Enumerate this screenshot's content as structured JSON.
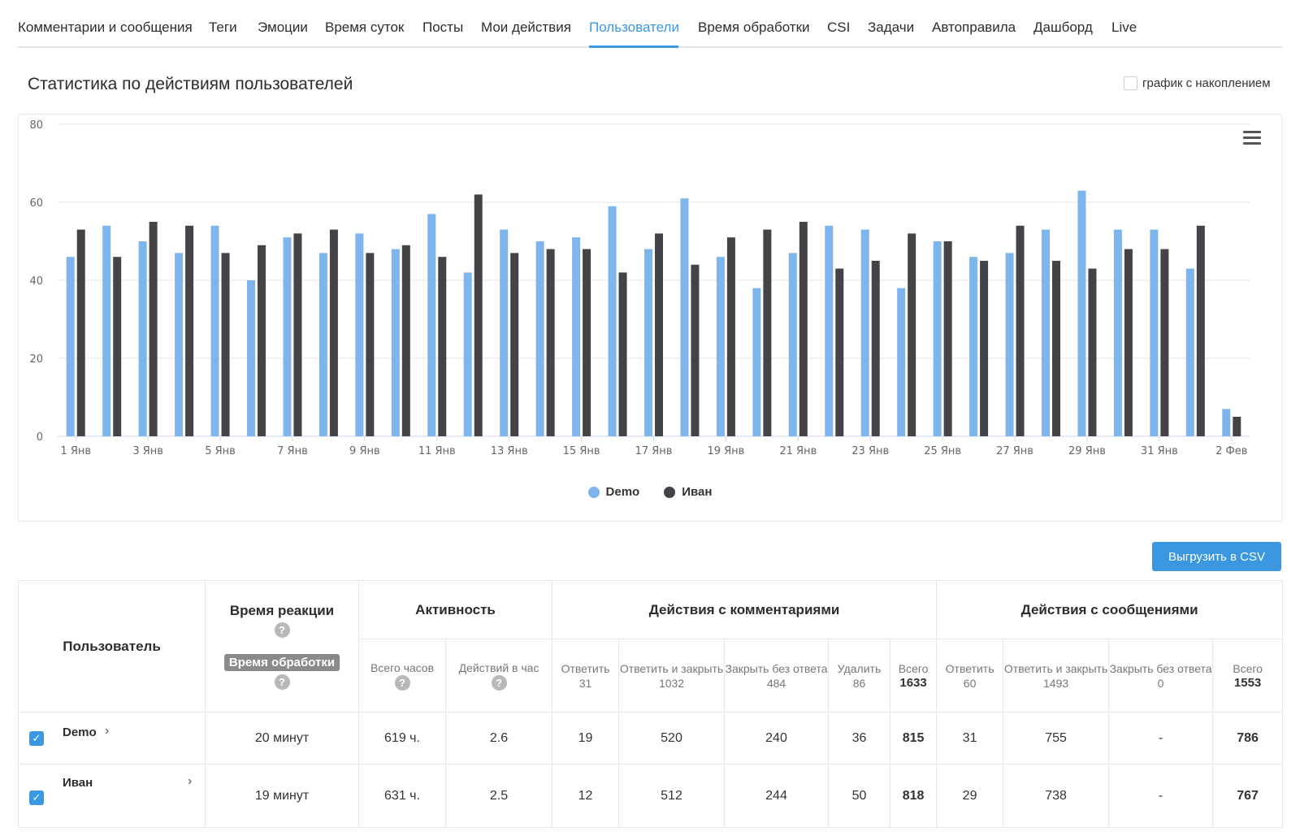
{
  "tabs": [
    {
      "label": "Комментарии и сообщения",
      "active": false
    },
    {
      "label": "Теги",
      "active": false
    },
    {
      "label": "Эмоции",
      "active": false
    },
    {
      "label": "Время суток",
      "active": false
    },
    {
      "label": "Посты",
      "active": false
    },
    {
      "label": "Мои действия",
      "active": false
    },
    {
      "label": "Пользователи",
      "active": true
    },
    {
      "label": "Время обработки",
      "active": false
    },
    {
      "label": "CSI",
      "active": false
    },
    {
      "label": "Задачи",
      "active": false
    },
    {
      "label": "Автоправила",
      "active": false
    },
    {
      "label": "Дашборд",
      "active": false
    },
    {
      "label": "Live",
      "active": false
    }
  ],
  "page": {
    "title": "Статистика по действиям пользователей",
    "cumulative_label": "график с накоплением",
    "cumulative_checked": false,
    "csv_button": "Выгрузить в CSV",
    "menu_icon": "hamburger-icon"
  },
  "colors": {
    "accent": "#3a97e0",
    "demo": "#7eb5ec",
    "ivan": "#434348"
  },
  "chart_data": {
    "type": "bar",
    "categories": [
      "1 Янв",
      "2 Янв",
      "3 Янв",
      "4 Янв",
      "5 Янв",
      "6 Янв",
      "7 Янв",
      "8 Янв",
      "9 Янв",
      "10 Янв",
      "11 Янв",
      "12 Янв",
      "13 Янв",
      "14 Янв",
      "15 Янв",
      "16 Янв",
      "17 Янв",
      "18 Янв",
      "19 Янв",
      "20 Янв",
      "21 Янв",
      "22 Янв",
      "23 Янв",
      "24 Янв",
      "25 Янв",
      "26 Янв",
      "27 Янв",
      "28 Янв",
      "29 Янв",
      "30 Янв",
      "31 Янв",
      "1 Фев",
      "2 Фев"
    ],
    "tick_labels": [
      "1 Янв",
      "3 Янв",
      "5 Янв",
      "7 Янв",
      "9 Янв",
      "11 Янв",
      "13 Янв",
      "15 Янв",
      "17 Янв",
      "19 Янв",
      "21 Янв",
      "23 Янв",
      "25 Янв",
      "27 Янв",
      "29 Янв",
      "31 Янв",
      "2 Фев"
    ],
    "series": [
      {
        "name": "Demo",
        "values": [
          46,
          54,
          50,
          47,
          54,
          40,
          51,
          47,
          52,
          48,
          57,
          42,
          53,
          50,
          51,
          59,
          48,
          61,
          46,
          38,
          47,
          54,
          53,
          38,
          50,
          46,
          47,
          53,
          63,
          53,
          53,
          43,
          7
        ]
      },
      {
        "name": "Иван",
        "values": [
          53,
          46,
          55,
          54,
          47,
          49,
          52,
          53,
          47,
          49,
          46,
          62,
          47,
          48,
          48,
          42,
          52,
          44,
          51,
          53,
          55,
          43,
          45,
          52,
          50,
          45,
          54,
          45,
          43,
          48,
          48,
          54,
          5
        ]
      }
    ],
    "ylim": [
      0,
      80
    ],
    "yticks": [
      0,
      20,
      40,
      60,
      80
    ],
    "grid": true,
    "legend": "bottom-center"
  },
  "table": {
    "user_header": "Пользователь",
    "reaction_header": "Время реакции",
    "processing_label": "Время обработки",
    "activity_header": "Активность",
    "comments_header": "Действия с комментариями",
    "messages_header": "Действия с сообщениями",
    "activity_cols": [
      {
        "label": "Всего часов"
      },
      {
        "label": "Действий в час"
      }
    ],
    "comment_cols": [
      {
        "label": "Ответить",
        "total": "31"
      },
      {
        "label": "Ответить и закрыть",
        "total": "1032"
      },
      {
        "label": "Закрыть без ответа",
        "total": "484"
      },
      {
        "label": "Удалить",
        "total": "86"
      },
      {
        "label": "Всего",
        "total": "1633"
      }
    ],
    "message_cols": [
      {
        "label": "Ответить",
        "total": "60"
      },
      {
        "label": "Ответить и закрыть",
        "total": "1493"
      },
      {
        "label": "Закрыть без ответа",
        "total": "0"
      },
      {
        "label": "Всего",
        "total": "1553"
      }
    ],
    "rows": [
      {
        "name": "Demo",
        "checked": true,
        "reaction": "20 минут",
        "hours": "619 ч.",
        "per_hour": "2.6",
        "c_reply": "19",
        "c_reply_close": "520",
        "c_close": "240",
        "c_delete": "36",
        "c_total": "815",
        "m_reply": "31",
        "m_reply_close": "755",
        "m_close": "-",
        "m_total": "786"
      },
      {
        "name": "Иван",
        "checked": true,
        "reaction": "19 минут",
        "hours": "631 ч.",
        "per_hour": "2.5",
        "c_reply": "12",
        "c_reply_close": "512",
        "c_close": "244",
        "c_delete": "50",
        "c_total": "818",
        "m_reply": "29",
        "m_reply_close": "738",
        "m_close": "-",
        "m_total": "767"
      }
    ]
  }
}
